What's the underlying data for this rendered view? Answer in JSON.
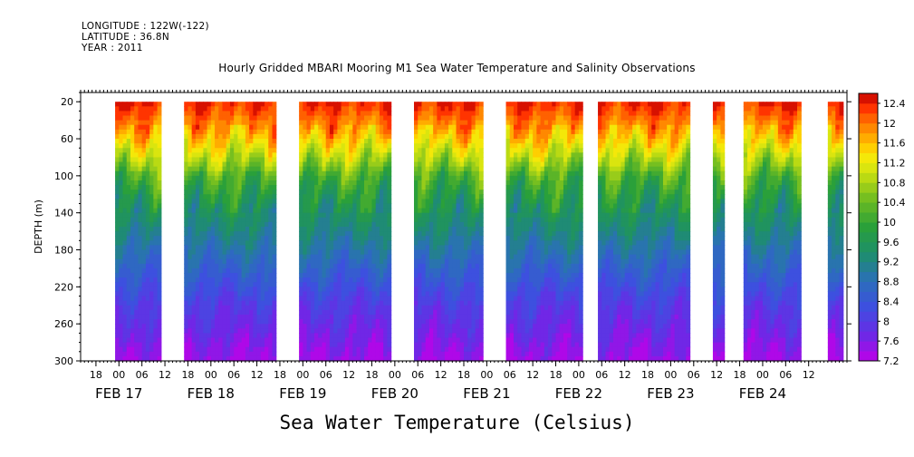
{
  "header": {
    "longitude": "LONGITUDE : 122W(-122)",
    "latitude": "LATITUDE : 36.8N",
    "year": "YEAR : 2011",
    "title": "Hourly Gridded MBARI Mooring M1 Sea Water Temperature and Salinity Observations"
  },
  "footer_title": "Sea Water Temperature (Celsius)",
  "chart_data": {
    "type": "heatmap",
    "title": "Hourly Gridded MBARI Mooring M1 Sea Water Temperature and Salinity Observations",
    "subtitle": "Sea Water Temperature (Celsius)",
    "xlabel": "",
    "ylabel": "DEPTH (m)",
    "x_axis": {
      "unit": "hours",
      "range_hours_from_feb17_00": [
        -10,
        190
      ],
      "hour_tick_labels": [
        "18",
        "00",
        "06",
        "12",
        "18",
        "00",
        "06",
        "12",
        "18",
        "00",
        "06",
        "12",
        "18",
        "00",
        "06",
        "12",
        "18",
        "00",
        "06",
        "12",
        "18",
        "00",
        "06",
        "12",
        "18",
        "00",
        "06",
        "12",
        "18",
        "00",
        "06",
        "12"
      ],
      "date_labels": [
        "FEB 17",
        "FEB 18",
        "FEB 19",
        "FEB 20",
        "FEB 21",
        "FEB 22",
        "FEB 23",
        "FEB 24"
      ]
    },
    "y_axis": {
      "range": [
        300,
        10
      ],
      "inverted": true,
      "tick_labels": [
        "20",
        "60",
        "100",
        "140",
        "180",
        "220",
        "260",
        "300"
      ]
    },
    "colorbar": {
      "min": 7.2,
      "max": 12.6,
      "step": 0.2,
      "tick_labels": [
        "12.4",
        "12",
        "11.6",
        "11.2",
        "10.8",
        "10.4",
        "10",
        "9.6",
        "9.2",
        "8.8",
        "8.4",
        "8",
        "7.6",
        "7.2"
      ]
    },
    "data_segments_hours": [
      [
        -1,
        11
      ],
      [
        17,
        41
      ],
      [
        47,
        71
      ],
      [
        77,
        95
      ],
      [
        101,
        121
      ],
      [
        125,
        149
      ],
      [
        155,
        158
      ],
      [
        163,
        178
      ],
      [
        185,
        189
      ],
      [
        201,
        205
      ]
    ],
    "temperature_profile": {
      "depth_m": [
        20,
        40,
        60,
        80,
        90,
        100,
        120,
        140,
        160,
        180,
        200,
        220,
        240,
        260,
        280,
        300
      ],
      "temp_c": [
        12.4,
        12.0,
        11.5,
        10.9,
        10.6,
        10.2,
        9.8,
        9.5,
        9.2,
        8.9,
        8.6,
        8.3,
        8.0,
        7.8,
        7.6,
        7.4
      ]
    }
  }
}
